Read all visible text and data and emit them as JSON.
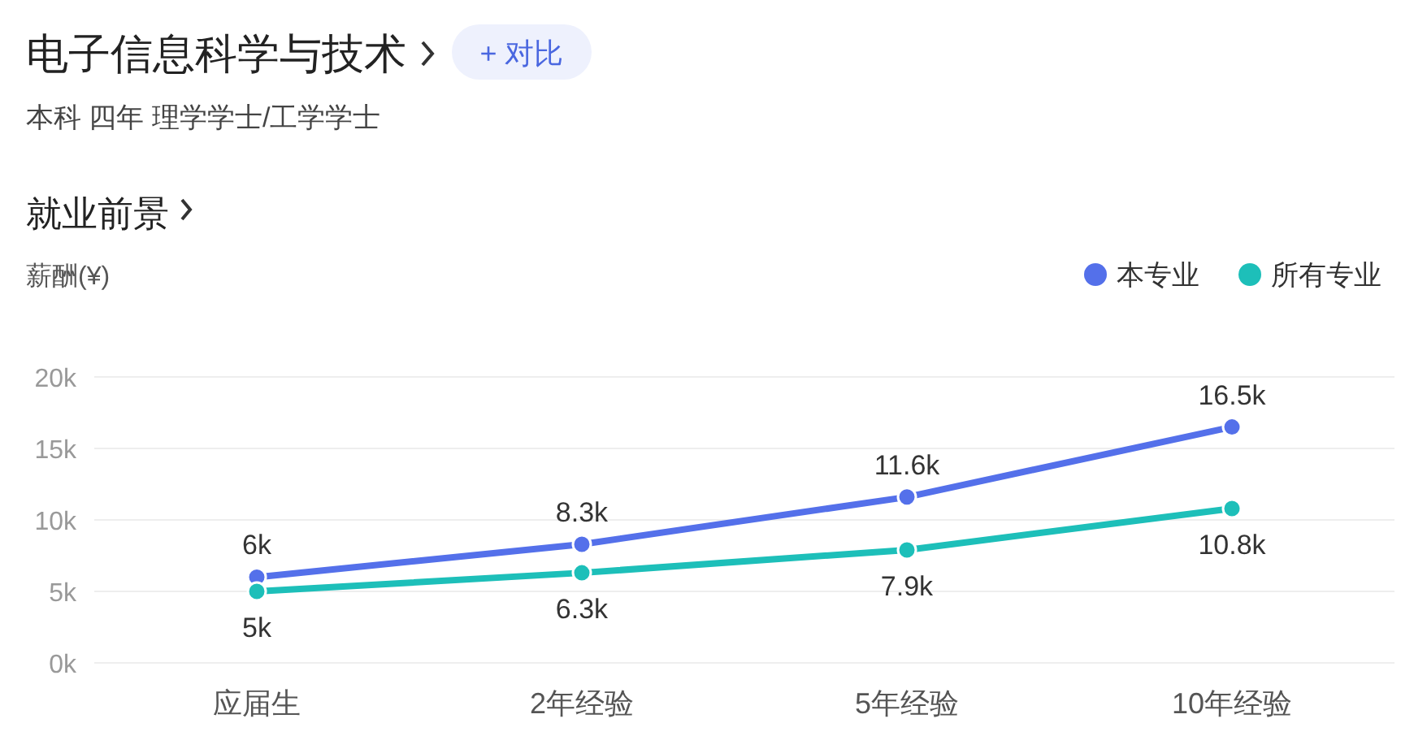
{
  "chart_data": {
    "type": "line",
    "title": "电子信息科学与技术",
    "subtitle": "本科 四年 理学学士/工学学士",
    "annotations": [
      "+ 对比",
      "就业前景"
    ],
    "ylabel": "薪酬(¥)",
    "categories": [
      "应届生",
      "2年经验",
      "5年经验",
      "10年经验"
    ],
    "series": [
      {
        "name": "本专业",
        "color": "#5470ea",
        "values": [
          6,
          8.3,
          11.6,
          16.5
        ],
        "value_labels": [
          "6k",
          "8.3k",
          "11.6k",
          "16.5k"
        ]
      },
      {
        "name": "所有专业",
        "color": "#1dbfb9",
        "values": [
          5,
          6.3,
          7.9,
          10.8
        ],
        "value_labels": [
          "5k",
          "6.3k",
          "7.9k",
          "10.8k"
        ]
      }
    ],
    "ylim": [
      0,
      20
    ],
    "yticks": [
      {
        "value": 0,
        "label": "0k"
      },
      {
        "value": 5,
        "label": "5k"
      },
      {
        "value": 10,
        "label": "10k"
      },
      {
        "value": 15,
        "label": "15k"
      },
      {
        "value": 20,
        "label": "20k"
      }
    ],
    "grid": "y",
    "legend": "top right",
    "marker": "circle",
    "line_style": "solid"
  }
}
